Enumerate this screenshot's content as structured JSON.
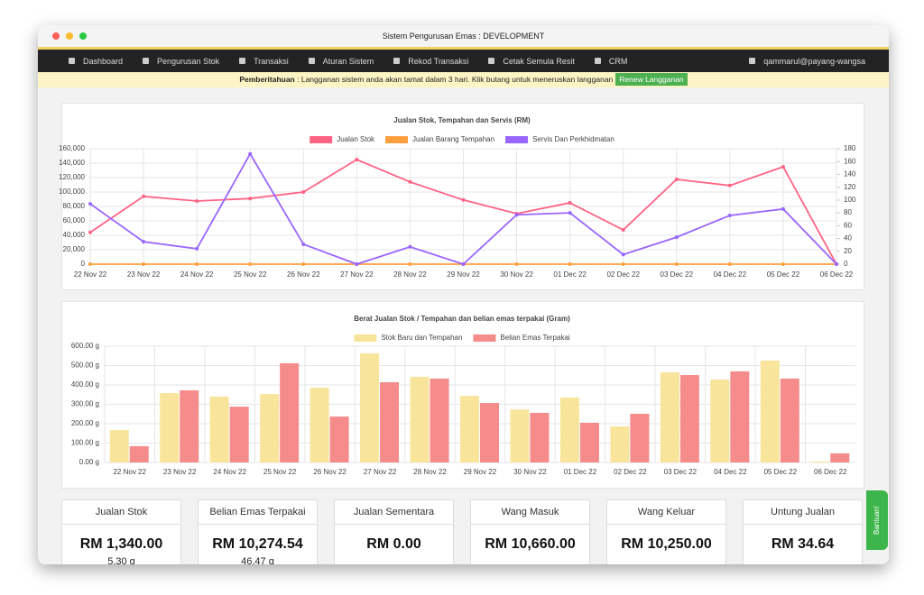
{
  "window": {
    "title": "Sistem Pengurusan Emas : DEVELOPMENT"
  },
  "nav": {
    "items": [
      "Dashboard",
      "Pengurusan Stok",
      "Transaksi",
      "Aturan Sistem",
      "Rekod Transaksi",
      "Cetak Semula Resit",
      "CRM"
    ],
    "user": "qammarul@payang-wangsa"
  },
  "notice": {
    "label": "Pemberitahuan",
    "text": ": Langganan sistem anda akan tamat dalam 3 hari. Klik butang untuk meneruskan langganan",
    "button": "Renew Langganan"
  },
  "chart_data": [
    {
      "type": "line",
      "title": "Jualan Stok, Tempahan dan Servis (RM)",
      "categories": [
        "22 Nov 22",
        "23 Nov 22",
        "24 Nov 22",
        "25 Nov 22",
        "26 Nov 22",
        "27 Nov 22",
        "28 Nov 22",
        "29 Nov 22",
        "30 Nov 22",
        "01 Dec 22",
        "02 Dec 22",
        "03 Dec 22",
        "04 Dec 22",
        "05 Dec 22",
        "06 Dec 22"
      ],
      "series": [
        {
          "name": "Jualan Stok",
          "color": "#ff6384",
          "values": [
            44000,
            94000,
            87500,
            91000,
            100000,
            145000,
            114000,
            89000,
            70000,
            85000,
            47500,
            117500,
            109000,
            135000,
            0
          ]
        },
        {
          "name": "Jualan Barang Tempahan",
          "color": "#ff9f40",
          "values": [
            0,
            0,
            0,
            0,
            0,
            0,
            0,
            0,
            0,
            0,
            0,
            0,
            0,
            0,
            0
          ]
        },
        {
          "name": "Servis Dan Perkhidmatan",
          "color": "#9966ff",
          "axis": "y2",
          "values": [
            94,
            35,
            24,
            172,
            31,
            0,
            27,
            0,
            77,
            80,
            15,
            42,
            76,
            86,
            0
          ]
        }
      ],
      "ylim": [
        0,
        160000
      ],
      "yticks": [
        0,
        {
          "value": 20000,
          "label": "20,000"
        },
        {
          "value": 40000,
          "label": "40,000"
        },
        {
          "value": 60000,
          "label": "60,000"
        },
        {
          "value": 80000,
          "label": "80,000"
        },
        {
          "value": 100000,
          "label": "100,000"
        },
        {
          "value": 120000,
          "label": "120,000"
        },
        {
          "value": 140000,
          "label": "140,000"
        },
        {
          "value": 160000,
          "label": "160,000"
        }
      ],
      "y2lim": [
        0,
        180
      ],
      "y2ticks": [
        0,
        20,
        40,
        60,
        80,
        100,
        120,
        140,
        160,
        180
      ],
      "grid": true
    },
    {
      "type": "bar",
      "title": "Berat Jualan Stok / Tempahan dan belian emas terpakai (Gram)",
      "categories": [
        "22 Nov 22",
        "23 Nov 22",
        "24 Nov 22",
        "25 Nov 22",
        "26 Nov 22",
        "27 Nov 22",
        "28 Nov 22",
        "29 Nov 22",
        "30 Nov 22",
        "01 Dec 22",
        "02 Dec 22",
        "03 Dec 22",
        "04 Dec 22",
        "05 Dec 22",
        "06 Dec 22"
      ],
      "series": [
        {
          "name": "Stok Baru dan Tempahan",
          "color": "#f9e49c",
          "values": [
            167,
            358,
            340,
            353,
            386,
            563,
            442,
            344,
            274,
            335,
            186,
            465,
            428,
            526,
            5
          ]
        },
        {
          "name": "Belian Emas Terpakai",
          "color": "#f68b8b",
          "values": [
            84,
            372,
            288,
            512,
            237,
            414,
            433,
            307,
            256,
            205,
            251,
            451,
            470,
            433,
            47
          ]
        }
      ],
      "ylim": [
        0,
        600
      ],
      "yticks": [
        {
          "value": 0,
          "label": "0.00 g"
        },
        {
          "value": 100,
          "label": "100.00 g"
        },
        {
          "value": 200,
          "label": "200.00 g"
        },
        {
          "value": 300,
          "label": "300.00 g"
        },
        {
          "value": 400,
          "label": "400.00 g"
        },
        {
          "value": 500,
          "label": "500.00 g"
        },
        {
          "value": 600,
          "label": "600.00 g"
        }
      ],
      "grid": true
    }
  ],
  "cards": [
    {
      "title": "Jualan Stok",
      "value": "RM 1,340.00",
      "sub": "5.30 g"
    },
    {
      "title": "Belian Emas Terpakai",
      "value": "RM 10,274.54",
      "sub": "46.47 g"
    },
    {
      "title": "Jualan Sementara",
      "value": "RM 0.00"
    },
    {
      "title": "Wang Masuk",
      "value": "RM 10,660.00"
    },
    {
      "title": "Wang Keluar",
      "value": "RM 10,250.00"
    },
    {
      "title": "Untung Jualan",
      "value": "RM 34.64"
    }
  ],
  "help": "Bantuan!"
}
